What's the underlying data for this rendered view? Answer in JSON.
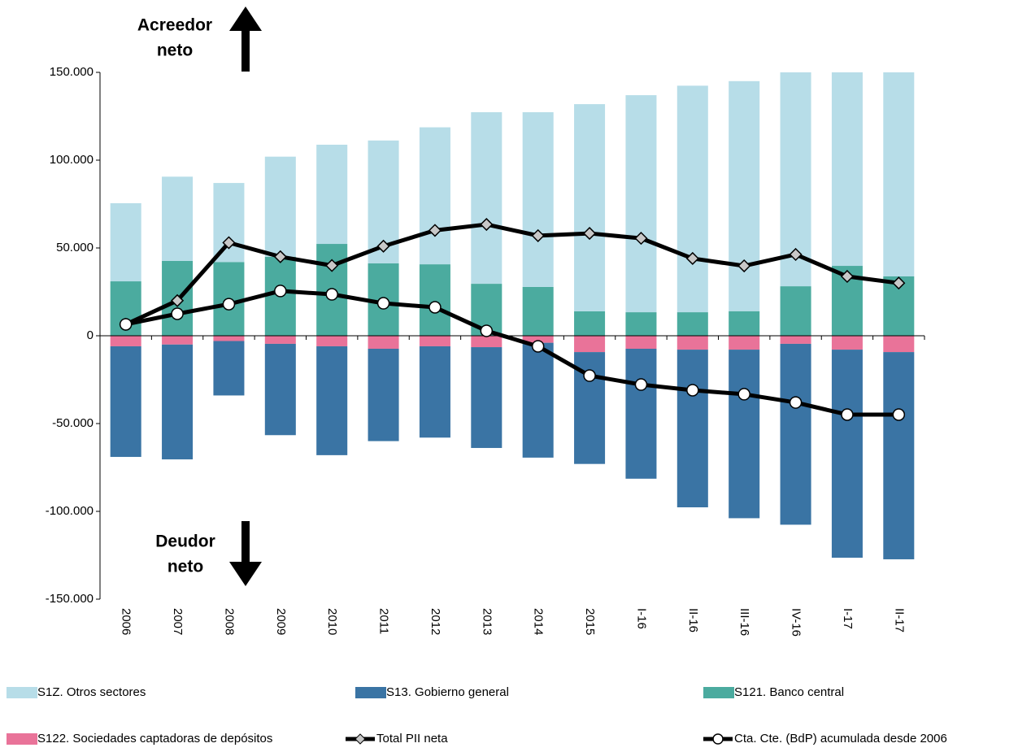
{
  "chart_data": {
    "type": "bar",
    "annotations": [
      [
        "Acreedor",
        "neto"
      ],
      [
        "Deudor",
        "neto"
      ]
    ],
    "categories": [
      "2006",
      "2007",
      "2008",
      "2009",
      "2010",
      "2011",
      "2012",
      "2013",
      "2014",
      "2015",
      "I-16",
      "II-16",
      "III-16",
      "IV-16",
      "I-17",
      "II-17"
    ],
    "series": [
      {
        "name": "S1Z. Otros sectores",
        "type": "bar",
        "color": "#b7dde8",
        "values": [
          44500,
          48000,
          45000,
          57000,
          56500,
          70000,
          78000,
          97700,
          99500,
          118000,
          123600,
          129000,
          131000,
          124000,
          115000,
          120000
        ]
      },
      {
        "name": "S13. Gobierno general",
        "type": "bar",
        "color": "#3a74a4",
        "values": [
          -63000,
          -65400,
          -31000,
          -52000,
          -62000,
          -52600,
          -52000,
          -57400,
          -65400,
          -63700,
          -74000,
          -89800,
          -96000,
          -103000,
          -118500,
          -118000
        ]
      },
      {
        "name": "S121. Banco central",
        "type": "bar",
        "color": "#4bab9f",
        "values": [
          31000,
          42600,
          42000,
          45000,
          52300,
          41200,
          40700,
          29600,
          27800,
          13900,
          13400,
          13400,
          14000,
          28200,
          39800,
          33800
        ]
      },
      {
        "name": "S122. Sociedades captadoras de depósitos",
        "type": "bar",
        "color": "#e97399",
        "values": [
          -6000,
          -5000,
          -3000,
          -4600,
          -6000,
          -7400,
          -6000,
          -6500,
          -4000,
          -9300,
          -7400,
          -7900,
          -7900,
          -4600,
          -7900,
          -9300
        ]
      },
      {
        "name": "Total PII neta",
        "type": "line",
        "marker": "diamond",
        "color": "#000000",
        "values": [
          6500,
          20000,
          53000,
          45000,
          40000,
          51000,
          60000,
          63400,
          57000,
          58300,
          55500,
          44000,
          39800,
          46300,
          33800,
          30000
        ]
      },
      {
        "name": "Cta. Cte. (BdP) acumulada desde 2006",
        "type": "line",
        "marker": "circle",
        "color": "#000000",
        "values": [
          6500,
          12500,
          18000,
          25500,
          23600,
          18500,
          16200,
          2800,
          -6000,
          -22700,
          -27800,
          -31000,
          -33300,
          -38000,
          -44900,
          -44900
        ]
      }
    ],
    "ylim": [
      -150000,
      150000
    ],
    "yticks": [
      {
        "value": -150000,
        "label": "-150.000"
      },
      {
        "value": -100000,
        "label": "-100.000"
      },
      {
        "value": -50000,
        "label": "-50.000"
      },
      0,
      {
        "value": 50000,
        "label": "50.000"
      },
      {
        "value": 100000,
        "label": "100.000"
      },
      {
        "value": 150000,
        "label": "150.000"
      }
    ]
  }
}
